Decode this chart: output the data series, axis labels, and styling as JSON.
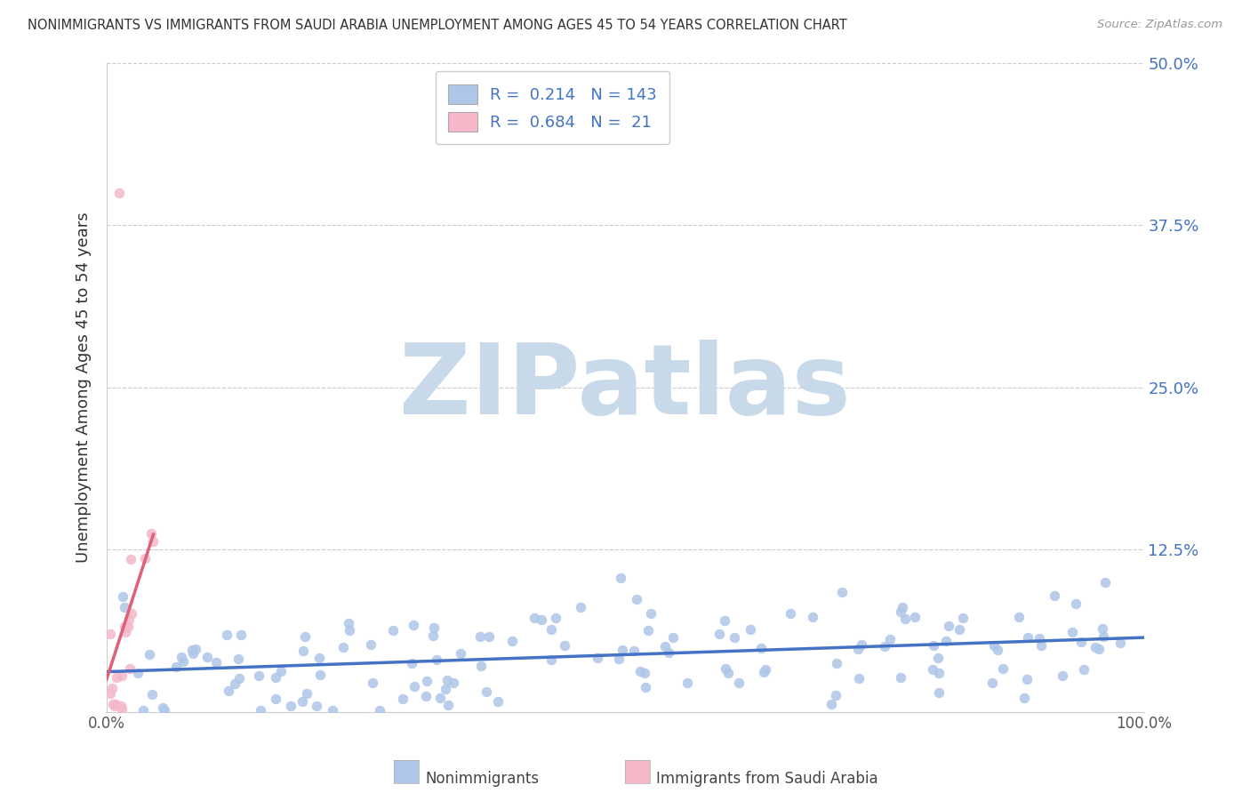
{
  "title": "NONIMMIGRANTS VS IMMIGRANTS FROM SAUDI ARABIA UNEMPLOYMENT AMONG AGES 45 TO 54 YEARS CORRELATION CHART",
  "source": "Source: ZipAtlas.com",
  "ylabel": "Unemployment Among Ages 45 to 54 years",
  "xlim": [
    0,
    100
  ],
  "ylim": [
    0,
    50
  ],
  "blue_scatter_color": "#aec6e8",
  "pink_scatter_color": "#f5b8c8",
  "trend_blue_color": "#4472c4",
  "trend_pink_color": "#e0607a",
  "watermark_text": "ZIPatlas",
  "watermark_color": "#c8daea",
  "bg_color": "#ffffff",
  "grid_color": "#cccccc",
  "r_blue": "0.214",
  "n_blue": "143",
  "r_pink": "0.684",
  "n_pink": "21",
  "legend_box_blue": "#aec6e8",
  "legend_box_pink": "#f5b8c8",
  "legend_text_color": "#4472c4",
  "title_color": "#333333",
  "source_color": "#999999",
  "ytick_color": "#4472c4",
  "yticks": [
    0,
    12.5,
    25.0,
    37.5,
    50.0
  ],
  "ytick_labels": [
    "",
    "12.5%",
    "25.0%",
    "37.5%",
    "50.0%"
  ],
  "bottom_label1": "Nonimmigrants",
  "bottom_label2": "Immigrants from Saudi Arabia"
}
